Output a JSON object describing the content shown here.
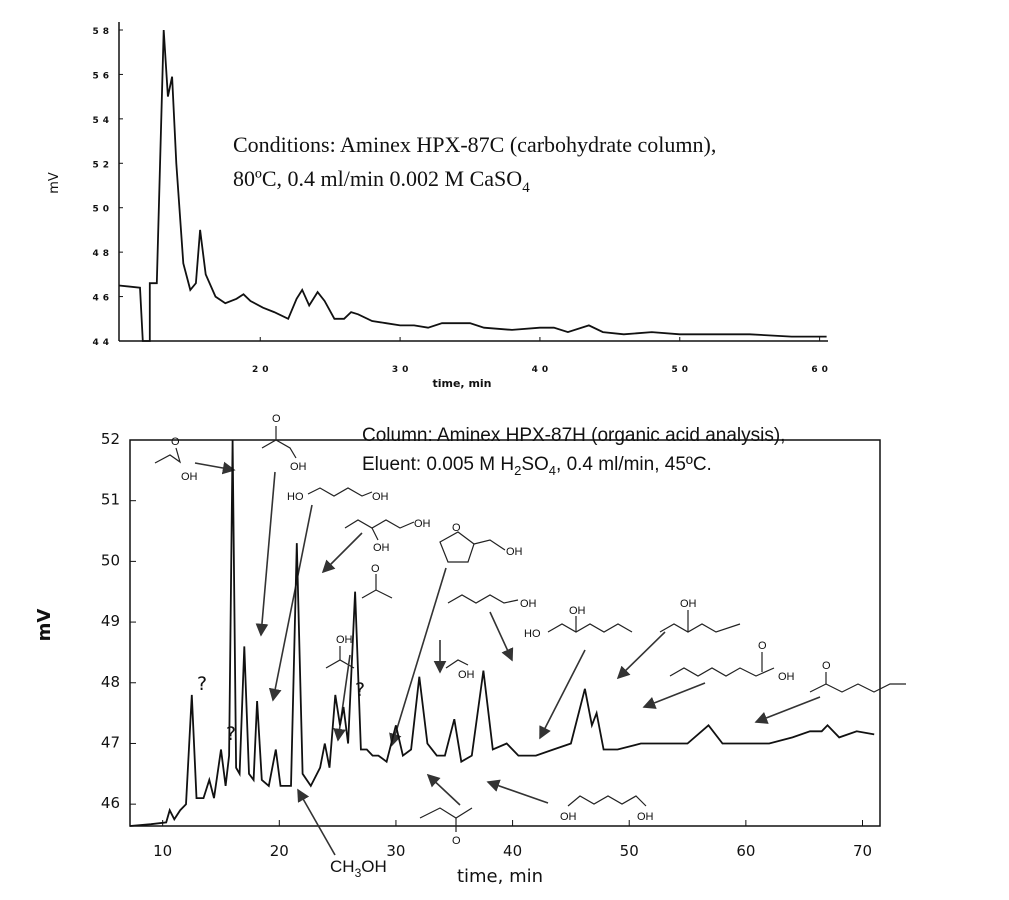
{
  "chart_data": [
    {
      "type": "line",
      "ylabel": "mV",
      "xlabel": "time, min",
      "annotations": [
        "Conditions: Aminex HPX-87C (carbohydrate column),",
        "80ºC, 0.4 ml/min 0.002 M CaSO",
        "4"
      ],
      "xlim": [
        9.9,
        60.6
      ],
      "ylim": [
        44,
        58
      ],
      "xticks": [
        20,
        30,
        40,
        50,
        60
      ],
      "yticks": [
        44,
        46,
        48,
        50,
        52,
        54,
        56,
        58
      ],
      "x": [
        9.9,
        11.4,
        11.6,
        12.1,
        12.1,
        12.6,
        13.1,
        13.4,
        13.7,
        14.0,
        14.5,
        15.0,
        15.4,
        15.7,
        16.1,
        16.8,
        17.5,
        18.3,
        18.8,
        19.3,
        20.2,
        21,
        22,
        22.6,
        23,
        23.5,
        24.1,
        24.6,
        25.3,
        26,
        26.5,
        27,
        28,
        29,
        30,
        31,
        32,
        33,
        34,
        35,
        36,
        38,
        40,
        41,
        42,
        43.5,
        44.5,
        46,
        48,
        50,
        52,
        55,
        58,
        60.5
      ],
      "series": [
        {
          "color": "#111111",
          "values": [
            46.5,
            46.4,
            44.0,
            44.0,
            46.6,
            46.6,
            58.0,
            55.0,
            55.9,
            52.0,
            47.5,
            46.3,
            46.6,
            49.0,
            47.0,
            46.0,
            45.7,
            45.9,
            46.1,
            45.8,
            45.5,
            45.3,
            45.0,
            45.9,
            46.3,
            45.6,
            46.2,
            45.8,
            45.0,
            45.0,
            45.3,
            45.2,
            44.9,
            44.8,
            44.7,
            44.7,
            44.6,
            44.8,
            44.8,
            44.8,
            44.6,
            44.5,
            44.6,
            44.6,
            44.4,
            44.7,
            44.4,
            44.3,
            44.4,
            44.3,
            44.3,
            44.3,
            44.2,
            44.2
          ]
        }
      ]
    },
    {
      "type": "line",
      "ylabel": "mV",
      "xlabel": "time, min",
      "annotations": [
        "Column: Aminex HPX-87H (organic acid analysis),",
        "Eluent: 0.005 M H",
        "2",
        "SO",
        "4",
        ", 0.4 ml/min, 45ºC.",
        "?",
        "?",
        "?",
        "CH",
        "3",
        "OH"
      ],
      "structure_labels": [
        "O",
        "OH",
        "O",
        "OH",
        "HO",
        "OH",
        "OH",
        "OH",
        "O",
        "OH",
        "OH",
        "O",
        "OH",
        "OH",
        "OH",
        "HO",
        "OH",
        "O",
        "OH",
        "O",
        "O",
        "OH",
        "OH"
      ],
      "xlim": [
        7.2,
        71.5
      ],
      "ylim": [
        45.64,
        52
      ],
      "xticks": [
        10,
        20,
        30,
        40,
        50,
        60,
        70
      ],
      "yticks": [
        46,
        47,
        48,
        49,
        50,
        51,
        52
      ],
      "x": [
        7.2,
        9,
        10.3,
        10.6,
        11,
        11.5,
        12,
        12.5,
        12.9,
        13.5,
        14,
        14.4,
        15,
        15.4,
        15.7,
        16.0,
        16.3,
        16.6,
        17.0,
        17.4,
        17.8,
        18.1,
        18.5,
        19.1,
        19.7,
        20.1,
        21,
        21.5,
        22,
        22.7,
        23.5,
        23.9,
        24.3,
        24.8,
        25.2,
        25.5,
        25.9,
        26.5,
        27,
        27.5,
        28,
        28.5,
        29.2,
        30,
        30.6,
        31.3,
        32,
        32.7,
        33.5,
        34.2,
        35,
        35.6,
        36.5,
        37.5,
        38.3,
        39.5,
        40.5,
        42,
        43.5,
        45,
        46.2,
        46.8,
        47.2,
        47.8,
        49,
        51,
        53,
        55,
        56.8,
        58,
        60,
        62,
        64,
        65.5,
        66.5,
        67,
        68,
        69.5,
        71
      ],
      "series": [
        {
          "color": "#111111",
          "values": [
            45.64,
            45.67,
            45.7,
            45.9,
            45.75,
            45.9,
            46.0,
            47.8,
            46.1,
            46.1,
            46.4,
            46.1,
            46.9,
            46.3,
            46.8,
            52.0,
            46.6,
            46.5,
            48.6,
            46.5,
            46.4,
            47.7,
            46.4,
            46.3,
            46.9,
            46.3,
            46.3,
            50.3,
            46.5,
            46.3,
            46.6,
            47.0,
            46.6,
            47.8,
            47.3,
            47.6,
            47.0,
            49.5,
            46.9,
            46.9,
            46.8,
            46.8,
            46.7,
            47.3,
            46.8,
            46.9,
            48.1,
            47.0,
            46.8,
            46.8,
            47.4,
            46.7,
            46.8,
            48.2,
            46.9,
            47.0,
            46.8,
            46.8,
            46.9,
            47.0,
            47.9,
            47.3,
            47.5,
            46.9,
            46.9,
            47.0,
            47.0,
            47.0,
            47.3,
            47.0,
            47.0,
            47.0,
            47.1,
            47.2,
            47.2,
            47.3,
            47.1,
            47.2,
            47.15
          ]
        }
      ]
    }
  ]
}
